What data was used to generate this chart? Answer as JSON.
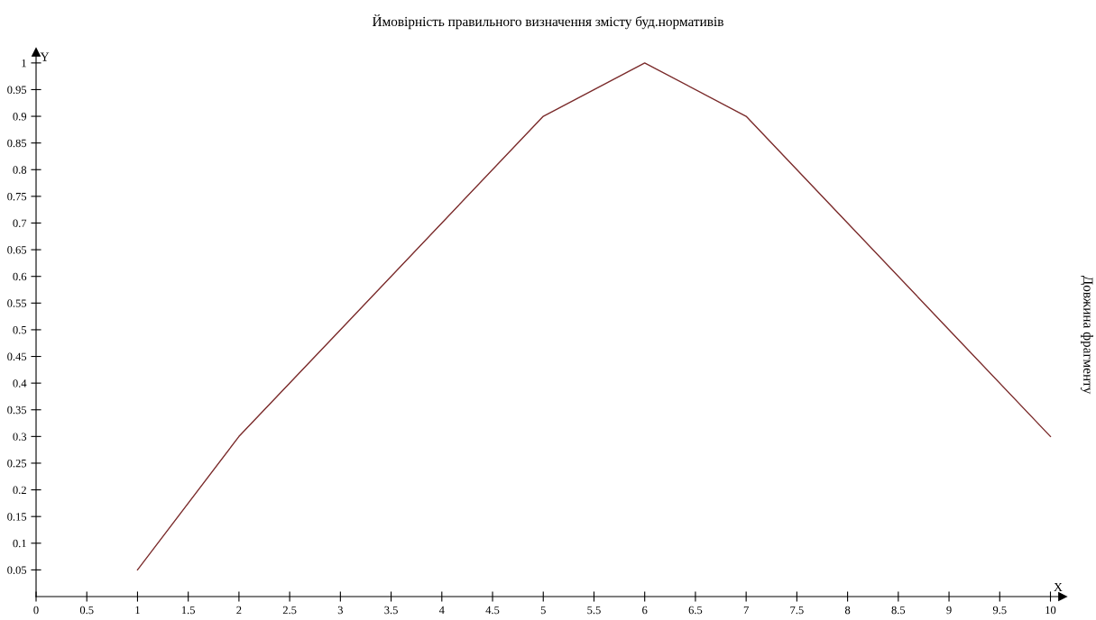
{
  "chart_data": {
    "type": "line",
    "title": "Ймовірність правильного визначення змісту буд.нормативів",
    "xlabel": "X",
    "ylabel": "Y",
    "annotations": [
      "Довжина фрагменту"
    ],
    "x": [
      1,
      2,
      3,
      4,
      5,
      6,
      7,
      8,
      9,
      10
    ],
    "series": [
      {
        "color": "#7a2a2a",
        "values": [
          0.05,
          0.3,
          0.5,
          0.7,
          0.9,
          1.0,
          0.9,
          0.7,
          0.5,
          0.3
        ]
      }
    ],
    "xlim": [
      0,
      10.12
    ],
    "ylim": [
      0,
      1.02
    ],
    "xticks": [
      0,
      0.5,
      1,
      1.5,
      2,
      2.5,
      3,
      3.5,
      4,
      4.5,
      5,
      5.5,
      6,
      6.5,
      7,
      7.5,
      8,
      8.5,
      9,
      9.5,
      10
    ],
    "yticks": [
      0.05,
      0.1,
      0.15,
      0.2,
      0.25,
      0.3,
      0.35,
      0.4,
      0.45,
      0.5,
      0.55,
      0.6,
      0.65,
      0.7,
      0.75,
      0.8,
      0.85,
      0.9,
      0.95,
      1
    ],
    "grid": false,
    "legend": false,
    "marker": "none",
    "line_style": "solid"
  }
}
